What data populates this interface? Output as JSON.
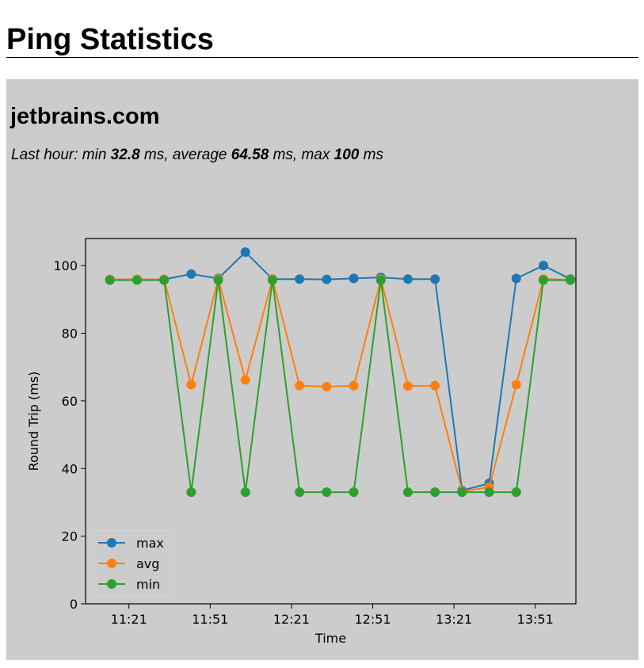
{
  "page": {
    "title": "Ping Statistics"
  },
  "host": {
    "name": "jetbrains.com",
    "summary": {
      "prefix": "Last hour: min ",
      "min": "32.8",
      "sep1": " ms, average ",
      "avg": "64.58",
      "sep2": " ms, max ",
      "max": "100",
      "suffix": " ms"
    }
  },
  "chart_data": {
    "type": "line",
    "xlabel": "Time",
    "ylabel": "Round Trip (ms)",
    "ylim": [
      0,
      108
    ],
    "yticks": [
      0,
      20,
      40,
      60,
      80,
      100
    ],
    "xlim": [
      "11:05",
      "14:06"
    ],
    "xtick_labels": [
      "11:21",
      "11:51",
      "12:21",
      "12:51",
      "13:21",
      "13:51"
    ],
    "x": [
      "11:14",
      "11:24",
      "11:34",
      "11:44",
      "11:54",
      "12:04",
      "12:14",
      "12:24",
      "12:34",
      "12:44",
      "12:54",
      "13:04",
      "13:14",
      "13:24",
      "13:34",
      "13:44",
      "13:54",
      "14:04"
    ],
    "series": [
      {
        "name": "max",
        "color": "#1f77b4",
        "values": [
          95.9,
          95.9,
          95.9,
          97.5,
          96.2,
          104.0,
          96.0,
          96.0,
          95.9,
          96.2,
          96.5,
          96.0,
          96.0,
          33.5,
          35.6,
          96.2,
          100.0,
          96.0
        ]
      },
      {
        "name": "avg",
        "color": "#ff7f0e",
        "values": [
          95.9,
          95.9,
          95.9,
          64.8,
          96.0,
          66.2,
          96.0,
          64.5,
          64.2,
          64.5,
          96.0,
          64.4,
          64.5,
          33.2,
          34.5,
          64.8,
          96.0,
          95.8
        ]
      },
      {
        "name": "min",
        "color": "#2ca02c",
        "values": [
          95.7,
          95.7,
          95.7,
          33.0,
          95.7,
          33.0,
          95.7,
          33.0,
          33.0,
          33.0,
          95.7,
          33.0,
          33.0,
          33.0,
          33.0,
          33.0,
          95.7,
          95.7
        ]
      }
    ],
    "legend": "lower-left",
    "grid": false
  }
}
